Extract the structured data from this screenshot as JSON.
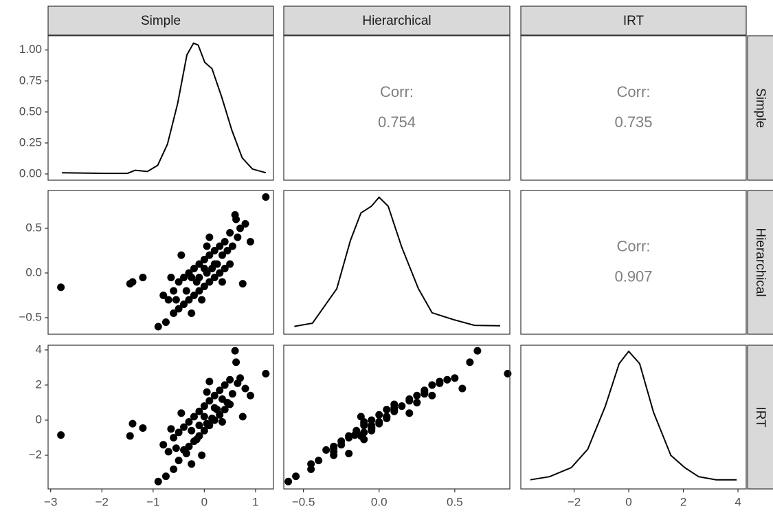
{
  "chart_data": {
    "type": "pairs",
    "columns": [
      {
        "name": "Simple",
        "xlim": [
          -3.05,
          1.35
        ],
        "xticks": [
          {
            "value": -3,
            "label": "−3"
          },
          {
            "value": -2,
            "label": "−2"
          },
          {
            "value": -1,
            "label": "−1"
          },
          0,
          1
        ]
      },
      {
        "name": "Hierarchical",
        "xlim": [
          -0.63,
          0.864
        ],
        "xticks": [
          {
            "value": -0.5,
            "label": "−0.5"
          },
          {
            "value": 0,
            "label": "0.0"
          },
          0.5
        ]
      },
      {
        "name": "IRT",
        "xlim": [
          -3.95,
          4.3
        ],
        "xticks": [
          {
            "value": -2,
            "label": "−2"
          },
          0,
          2,
          4
        ]
      }
    ],
    "rows": [
      {
        "name": "Simple",
        "ylim": [
          -0.05,
          1.115
        ],
        "yticks": [
          {
            "value": 0,
            "label": "0.00"
          },
          0.25,
          {
            "value": 0.5,
            "label": "0.50"
          },
          0.75,
          {
            "value": 1,
            "label": "1.00"
          }
        ]
      },
      {
        "name": "Hierarchical",
        "ylim": [
          -0.685,
          0.923
        ],
        "yticks": [
          {
            "value": -0.5,
            "label": "−0.5"
          },
          {
            "value": 0,
            "label": "0.0"
          },
          0.5
        ]
      },
      {
        "name": "IRT",
        "ylim": [
          -3.92,
          4.27
        ],
        "yticks": [
          {
            "value": -2,
            "label": "−2"
          },
          0,
          2,
          4
        ]
      }
    ],
    "data": {
      "Simple": [
        -2.8,
        1.2,
        0.6,
        0.62,
        -0.9,
        -1.45,
        -1.4,
        -1.2,
        0.75,
        -0.75,
        -0.6,
        -0.5,
        -0.4,
        -0.3,
        -0.2,
        -0.1,
        0,
        0.1,
        0.2,
        0.3,
        0.4,
        0.5,
        -0.5,
        -0.4,
        -0.3,
        -0.2,
        -0.1,
        0,
        0.1,
        0.2,
        0.3,
        0.4,
        0.5,
        0.7,
        0.8,
        -0.6,
        -0.7,
        -0.8,
        -0.35,
        -0.15,
        0.05,
        0.15,
        0.25,
        0.35,
        0.45,
        0.55,
        -0.05,
        -0.25,
        0.05,
        -0.45,
        0.65,
        -0.25,
        0,
        0.2,
        -0.1,
        0.1,
        -0.55,
        0.35,
        -0.65,
        0.9
      ],
      "Hierarchical": [
        -0.16,
        0.85,
        0.65,
        0.6,
        -0.6,
        -0.12,
        -0.1,
        -0.05,
        -0.12,
        -0.55,
        -0.45,
        -0.4,
        -0.35,
        -0.3,
        -0.25,
        -0.2,
        -0.15,
        -0.1,
        -0.05,
        0,
        0.05,
        0.1,
        -0.1,
        -0.05,
        0,
        0.05,
        0.1,
        0.15,
        0.2,
        0.25,
        0.3,
        0.35,
        0.45,
        0.5,
        0.55,
        -0.2,
        -0.3,
        -0.25,
        -0.2,
        -0.1,
        0,
        0.05,
        0.1,
        0.2,
        0.25,
        0.3,
        -0.3,
        -0.45,
        0.3,
        0.2,
        0.4,
        -0.05,
        0.05,
        0.1,
        -0.05,
        0.4,
        -0.3,
        -0.1,
        -0.05,
        0.35
      ],
      "IRT": [
        -0.85,
        2.65,
        3.95,
        3.3,
        -3.5,
        -0.9,
        -0.2,
        -0.45,
        0.2,
        -3.2,
        -2.8,
        -2.3,
        -1.7,
        -1.5,
        -1.2,
        -0.9,
        -0.6,
        -0.3,
        0,
        0.3,
        0.6,
        0.9,
        -0.7,
        -0.4,
        -0.1,
        0.2,
        0.5,
        0.8,
        1.1,
        1.4,
        1.7,
        2.0,
        2.3,
        2.4,
        1.8,
        -1.0,
        -1.8,
        -1.4,
        -1.9,
        -1.1,
        -0.2,
        0.1,
        0.6,
        1.2,
        1.0,
        1.5,
        -2.0,
        -2.5,
        1.6,
        0.4,
        2.1,
        -0.6,
        0.2,
        0.7,
        -0.3,
        2.2,
        -1.6,
        -0.1,
        -0.5,
        1.4
      ]
    },
    "panels": [
      {
        "type": "density",
        "x": [
          -2.78,
          -1.9,
          -1.5,
          -1.35,
          -1.11,
          -0.91,
          -0.72,
          -0.52,
          -0.34,
          -0.21,
          -0.12,
          0.01,
          0.15,
          0.34,
          0.54,
          0.74,
          0.94,
          1.2
        ],
        "y": [
          0.01,
          0.005,
          0.005,
          0.03,
          0.02,
          0.07,
          0.24,
          0.57,
          0.96,
          1.055,
          1.04,
          0.9,
          0.85,
          0.62,
          0.35,
          0.13,
          0.04,
          0.01
        ]
      },
      {
        "type": "corr",
        "label": "Corr:",
        "value": 0.754
      },
      {
        "type": "corr",
        "label": "Corr:",
        "value": 0.735
      },
      {
        "type": "scatter"
      },
      {
        "type": "density",
        "ylim": [
          -0.15,
          2.6
        ],
        "x": [
          -0.56,
          -0.44,
          -0.28,
          -0.19,
          -0.12,
          -0.05,
          0,
          0.06,
          0.15,
          0.26,
          0.35,
          0.49,
          0.63,
          0.8
        ],
        "y": [
          0,
          0.06,
          0.72,
          1.64,
          2.17,
          2.3,
          2.47,
          2.3,
          1.51,
          0.72,
          0.26,
          0.13,
          0.02,
          0.01
        ]
      },
      {
        "type": "corr",
        "label": "Corr:",
        "value": 0.907
      },
      {
        "type": "scatter"
      },
      {
        "type": "scatter"
      },
      {
        "type": "density",
        "ylim": [
          -0.03,
          0.44
        ],
        "x": [
          -3.6,
          -2.9,
          -2.1,
          -1.5,
          -0.86,
          -0.35,
          0,
          0.4,
          0.91,
          1.54,
          2.05,
          2.56,
          3.2,
          3.95
        ],
        "y": [
          0,
          0.01,
          0.04,
          0.1,
          0.24,
          0.38,
          0.42,
          0.38,
          0.22,
          0.08,
          0.04,
          0.01,
          0,
          0
        ]
      }
    ]
  }
}
